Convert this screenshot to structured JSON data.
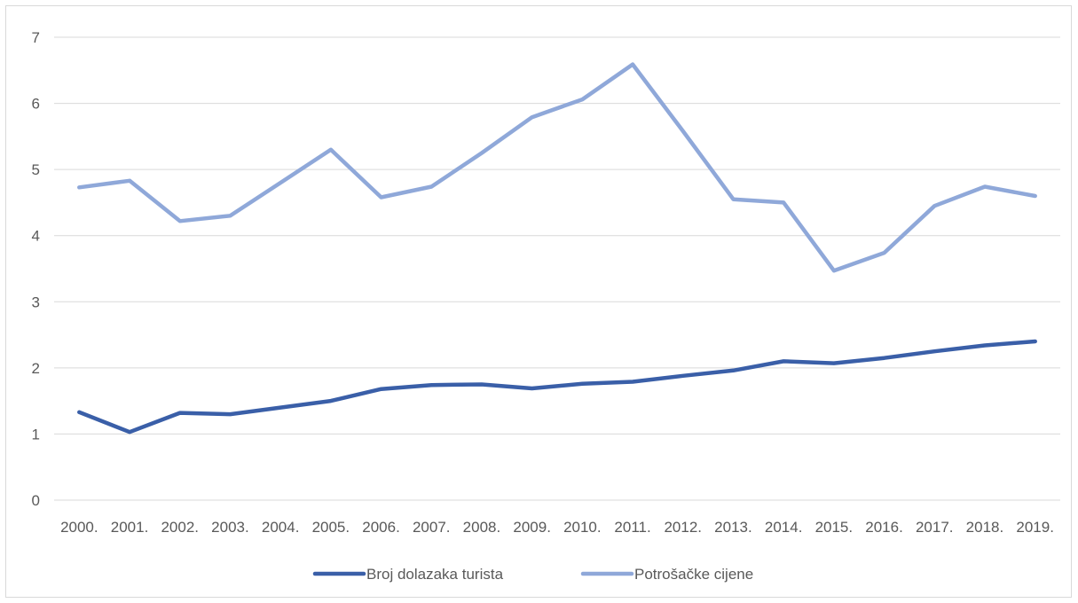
{
  "chart_data": {
    "type": "line",
    "title": "",
    "xlabel": "",
    "ylabel": "",
    "categories": [
      "2000.",
      "2001.",
      "2002.",
      "2003.",
      "2004.",
      "2005.",
      "2006.",
      "2007.",
      "2008.",
      "2009.",
      "2010.",
      "2011.",
      "2012.",
      "2013.",
      "2014.",
      "2015.",
      "2016.",
      "2017.",
      "2018.",
      "2019."
    ],
    "ylim": [
      0,
      7
    ],
    "yticks": [
      "0",
      "1",
      "2",
      "3",
      "4",
      "5",
      "6",
      "7"
    ],
    "grid": true,
    "legend_position": "bottom",
    "series": [
      {
        "name": "Broj dolazaka turista",
        "color": "#3a5fa8",
        "values": [
          1.33,
          1.03,
          1.32,
          1.3,
          1.4,
          1.5,
          1.68,
          1.74,
          1.75,
          1.69,
          1.76,
          1.79,
          1.88,
          1.96,
          2.1,
          2.07,
          2.15,
          2.25,
          2.34,
          2.4
        ]
      },
      {
        "name": "Potrošačke cijene",
        "color": "#8fa8d9",
        "values": [
          4.73,
          4.83,
          4.22,
          4.3,
          4.8,
          5.3,
          4.58,
          4.74,
          5.25,
          5.79,
          6.06,
          6.59,
          5.58,
          4.55,
          4.5,
          3.47,
          3.74,
          4.45,
          4.74,
          4.6
        ]
      }
    ]
  }
}
